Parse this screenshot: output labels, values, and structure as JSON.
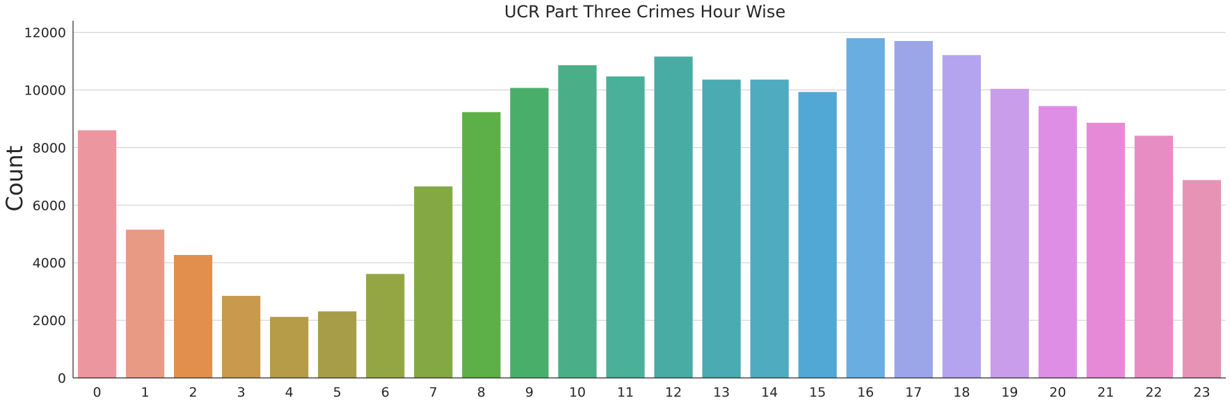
{
  "chart_data": {
    "type": "bar",
    "title": "UCR Part Three Crimes Hour Wise",
    "xlabel": "",
    "ylabel": "Count",
    "categories": [
      "0",
      "1",
      "2",
      "3",
      "4",
      "5",
      "6",
      "7",
      "8",
      "9",
      "10",
      "11",
      "12",
      "13",
      "14",
      "15",
      "16",
      "17",
      "18",
      "19",
      "20",
      "21",
      "22",
      "23"
    ],
    "values": [
      8600,
      5150,
      4270,
      2850,
      2120,
      2310,
      3610,
      6650,
      9230,
      10070,
      10860,
      10470,
      11160,
      10360,
      10360,
      9930,
      11800,
      11700,
      11210,
      10040,
      9440,
      8860,
      8410,
      6870
    ],
    "ylim": [
      0,
      12400
    ],
    "yticks": [
      0,
      2000,
      4000,
      6000,
      8000,
      10000,
      12000
    ],
    "grid": "horizontal",
    "colors": [
      "#ec96a0",
      "#e99a84",
      "#e28f4e",
      "#c99a4d",
      "#b69c48",
      "#a79d48",
      "#94a543",
      "#84a944",
      "#5daf47",
      "#4aae6b",
      "#4aaf88",
      "#4ab09a",
      "#49aca4",
      "#4aabb2",
      "#4eabc0",
      "#51a8d4",
      "#6aaee1",
      "#9ba6e8",
      "#b4a3ee",
      "#c99de9",
      "#df8ee6",
      "#e68ad7",
      "#e78dc4",
      "#e793b6"
    ]
  }
}
